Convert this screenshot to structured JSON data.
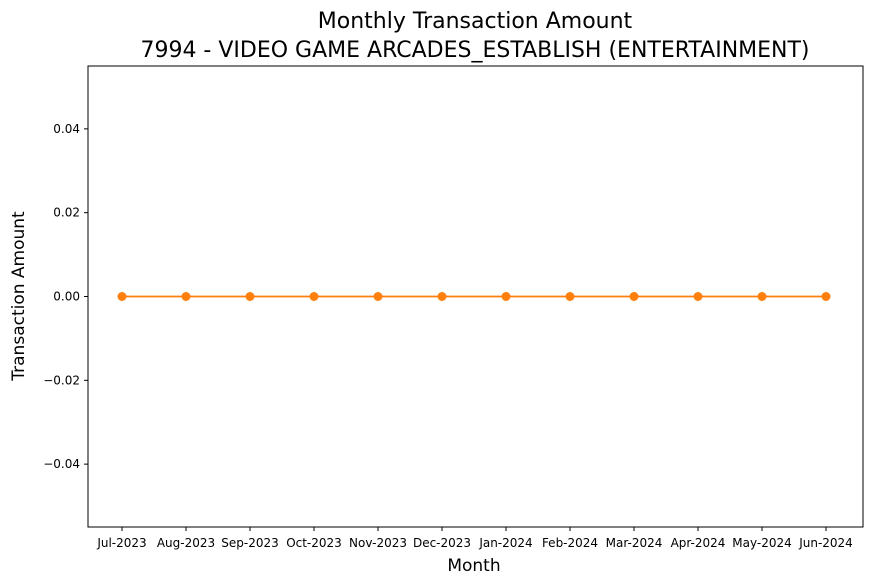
{
  "chart_data": {
    "type": "line",
    "title": "Monthly Transaction Amount",
    "subtitle": "7994 - VIDEO GAME ARCADES_ESTABLISH (ENTERTAINMENT)",
    "xlabel": "Month",
    "ylabel": "Transaction Amount",
    "categories": [
      "Jul-2023",
      "Aug-2023",
      "Sep-2023",
      "Oct-2023",
      "Nov-2023",
      "Dec-2023",
      "Jan-2024",
      "Feb-2024",
      "Mar-2024",
      "Apr-2024",
      "May-2024",
      "Jun-2024"
    ],
    "series": [
      {
        "values": [
          0,
          0,
          0,
          0,
          0,
          0,
          0,
          0,
          0,
          0,
          0,
          0
        ],
        "color": "#ff7f0e"
      }
    ],
    "ylim": [
      -0.055,
      0.055
    ],
    "yticks": [
      -0.04,
      -0.02,
      0.0,
      0.02,
      0.04
    ],
    "ytick_labels": [
      "−0.04",
      "−0.02",
      "0.00",
      "0.02",
      "0.04"
    ],
    "grid": false,
    "legend": "none"
  }
}
